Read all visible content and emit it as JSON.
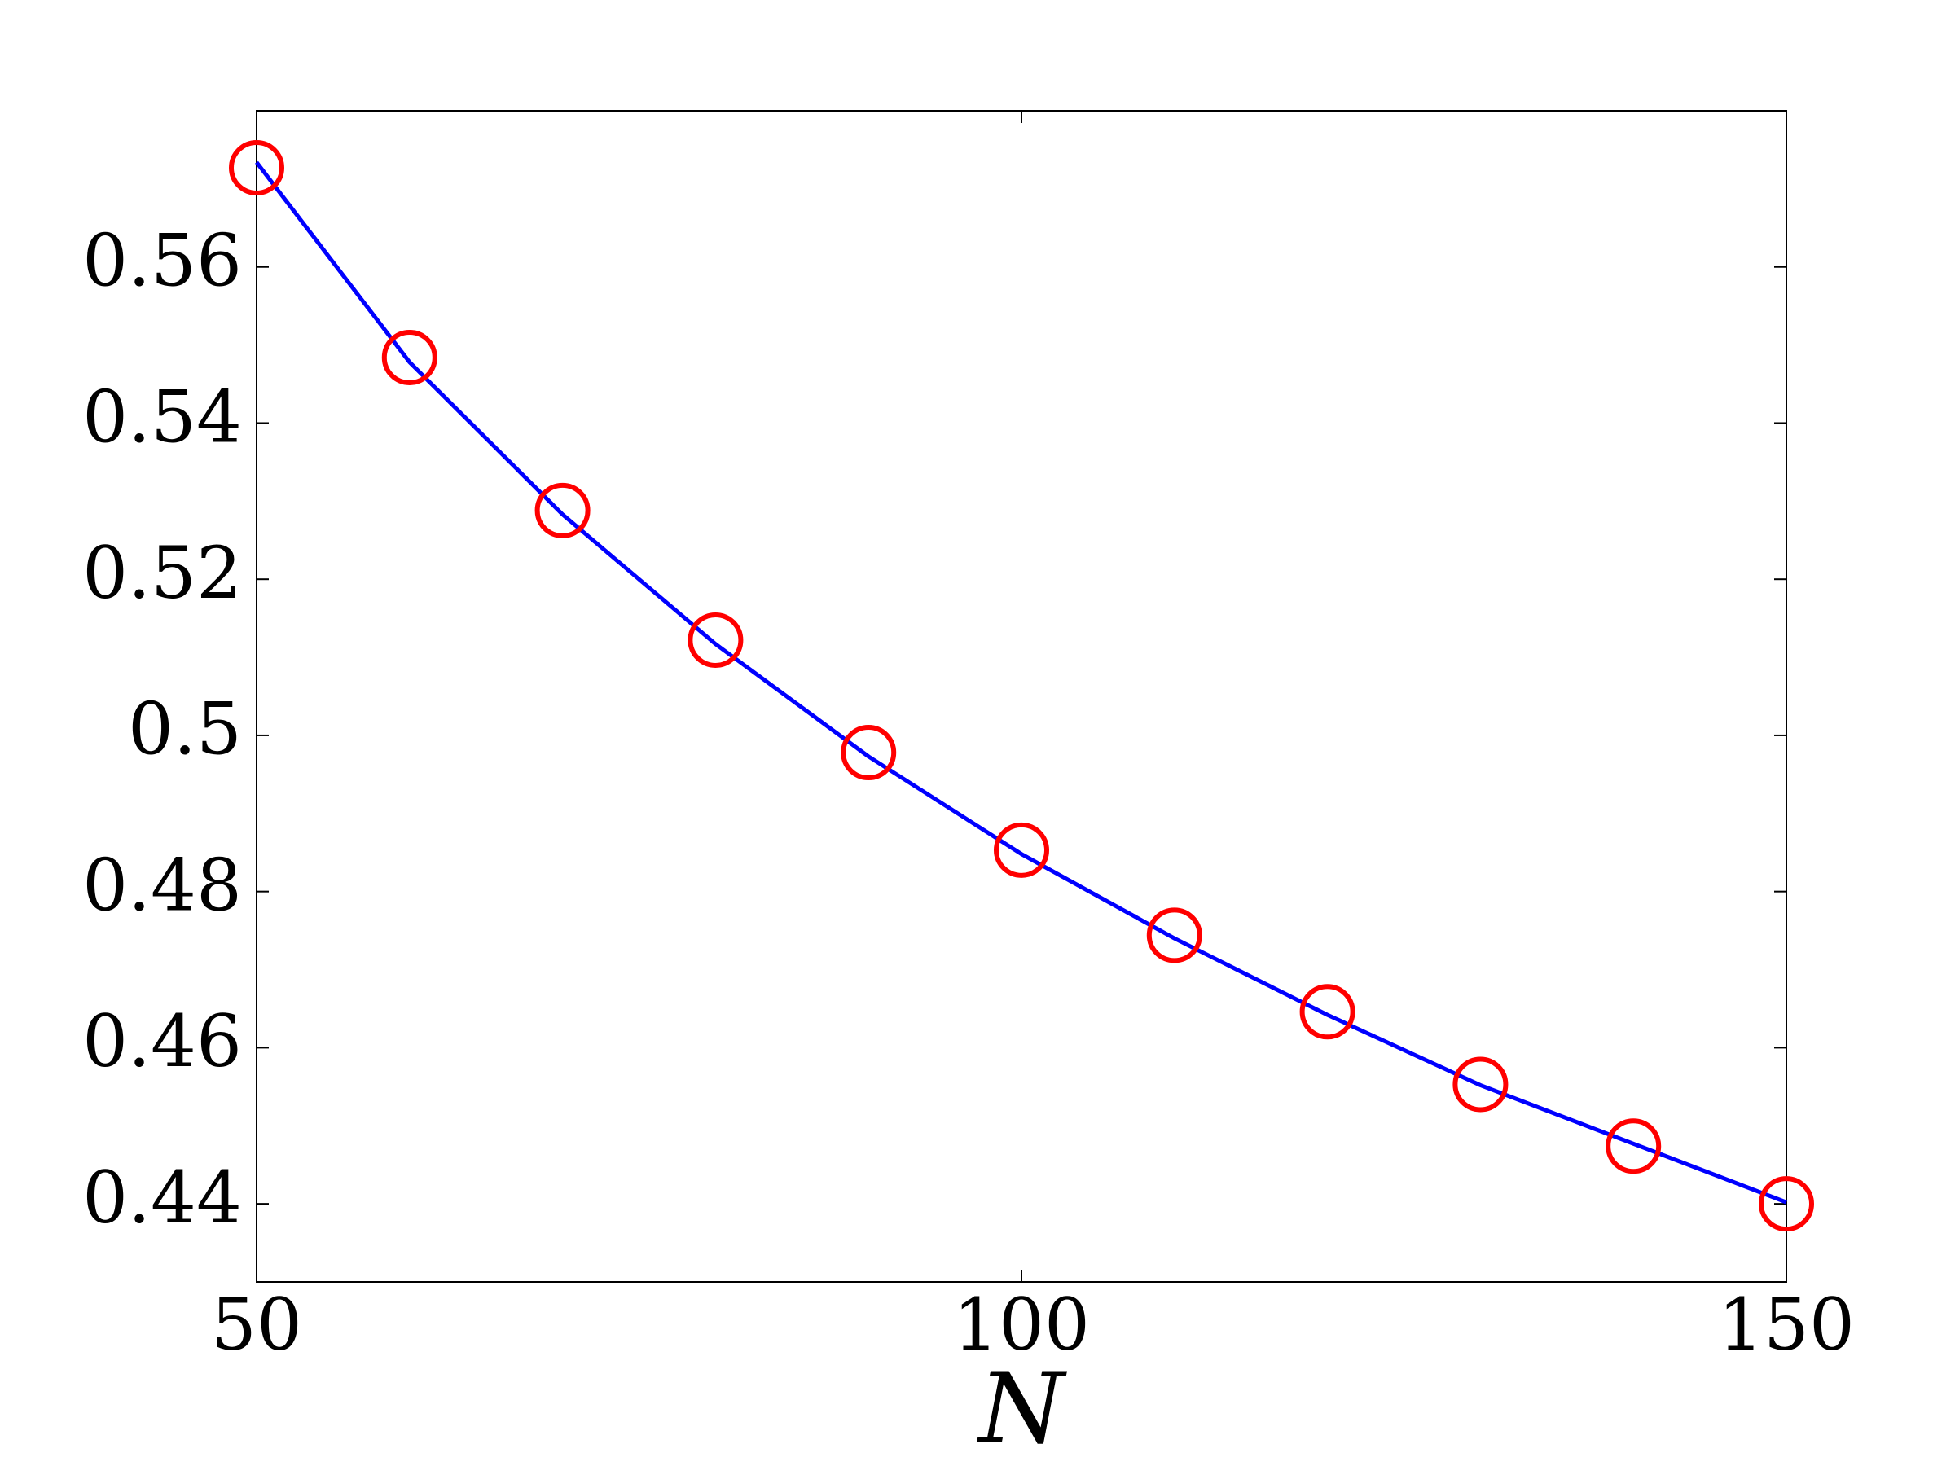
{
  "chart_data": {
    "type": "line",
    "x_label": "N",
    "x": [
      50,
      60,
      70,
      80,
      90,
      100,
      110,
      120,
      130,
      140,
      150
    ],
    "series": [
      {
        "color": "#0000ff",
        "marker": "none",
        "values": [
          0.5734,
          0.5478,
          0.5283,
          0.5117,
          0.4973,
          0.4848,
          0.474,
          0.4642,
          0.4552,
          0.4477,
          0.4402
        ]
      },
      {
        "color": "#ff0000",
        "marker": "circle",
        "values": [
          0.5727,
          0.5484,
          0.5288,
          0.5122,
          0.4978,
          0.4853,
          0.4744,
          0.4646,
          0.4553,
          0.4474,
          0.44
        ]
      }
    ],
    "xlim": [
      50,
      150
    ],
    "xticks": [
      50,
      100,
      150
    ],
    "ylim": [
      0.43,
      0.58
    ],
    "yticks": [
      0.44,
      0.46,
      0.48,
      0.5,
      0.52,
      0.54,
      0.56
    ],
    "grid": false
  }
}
